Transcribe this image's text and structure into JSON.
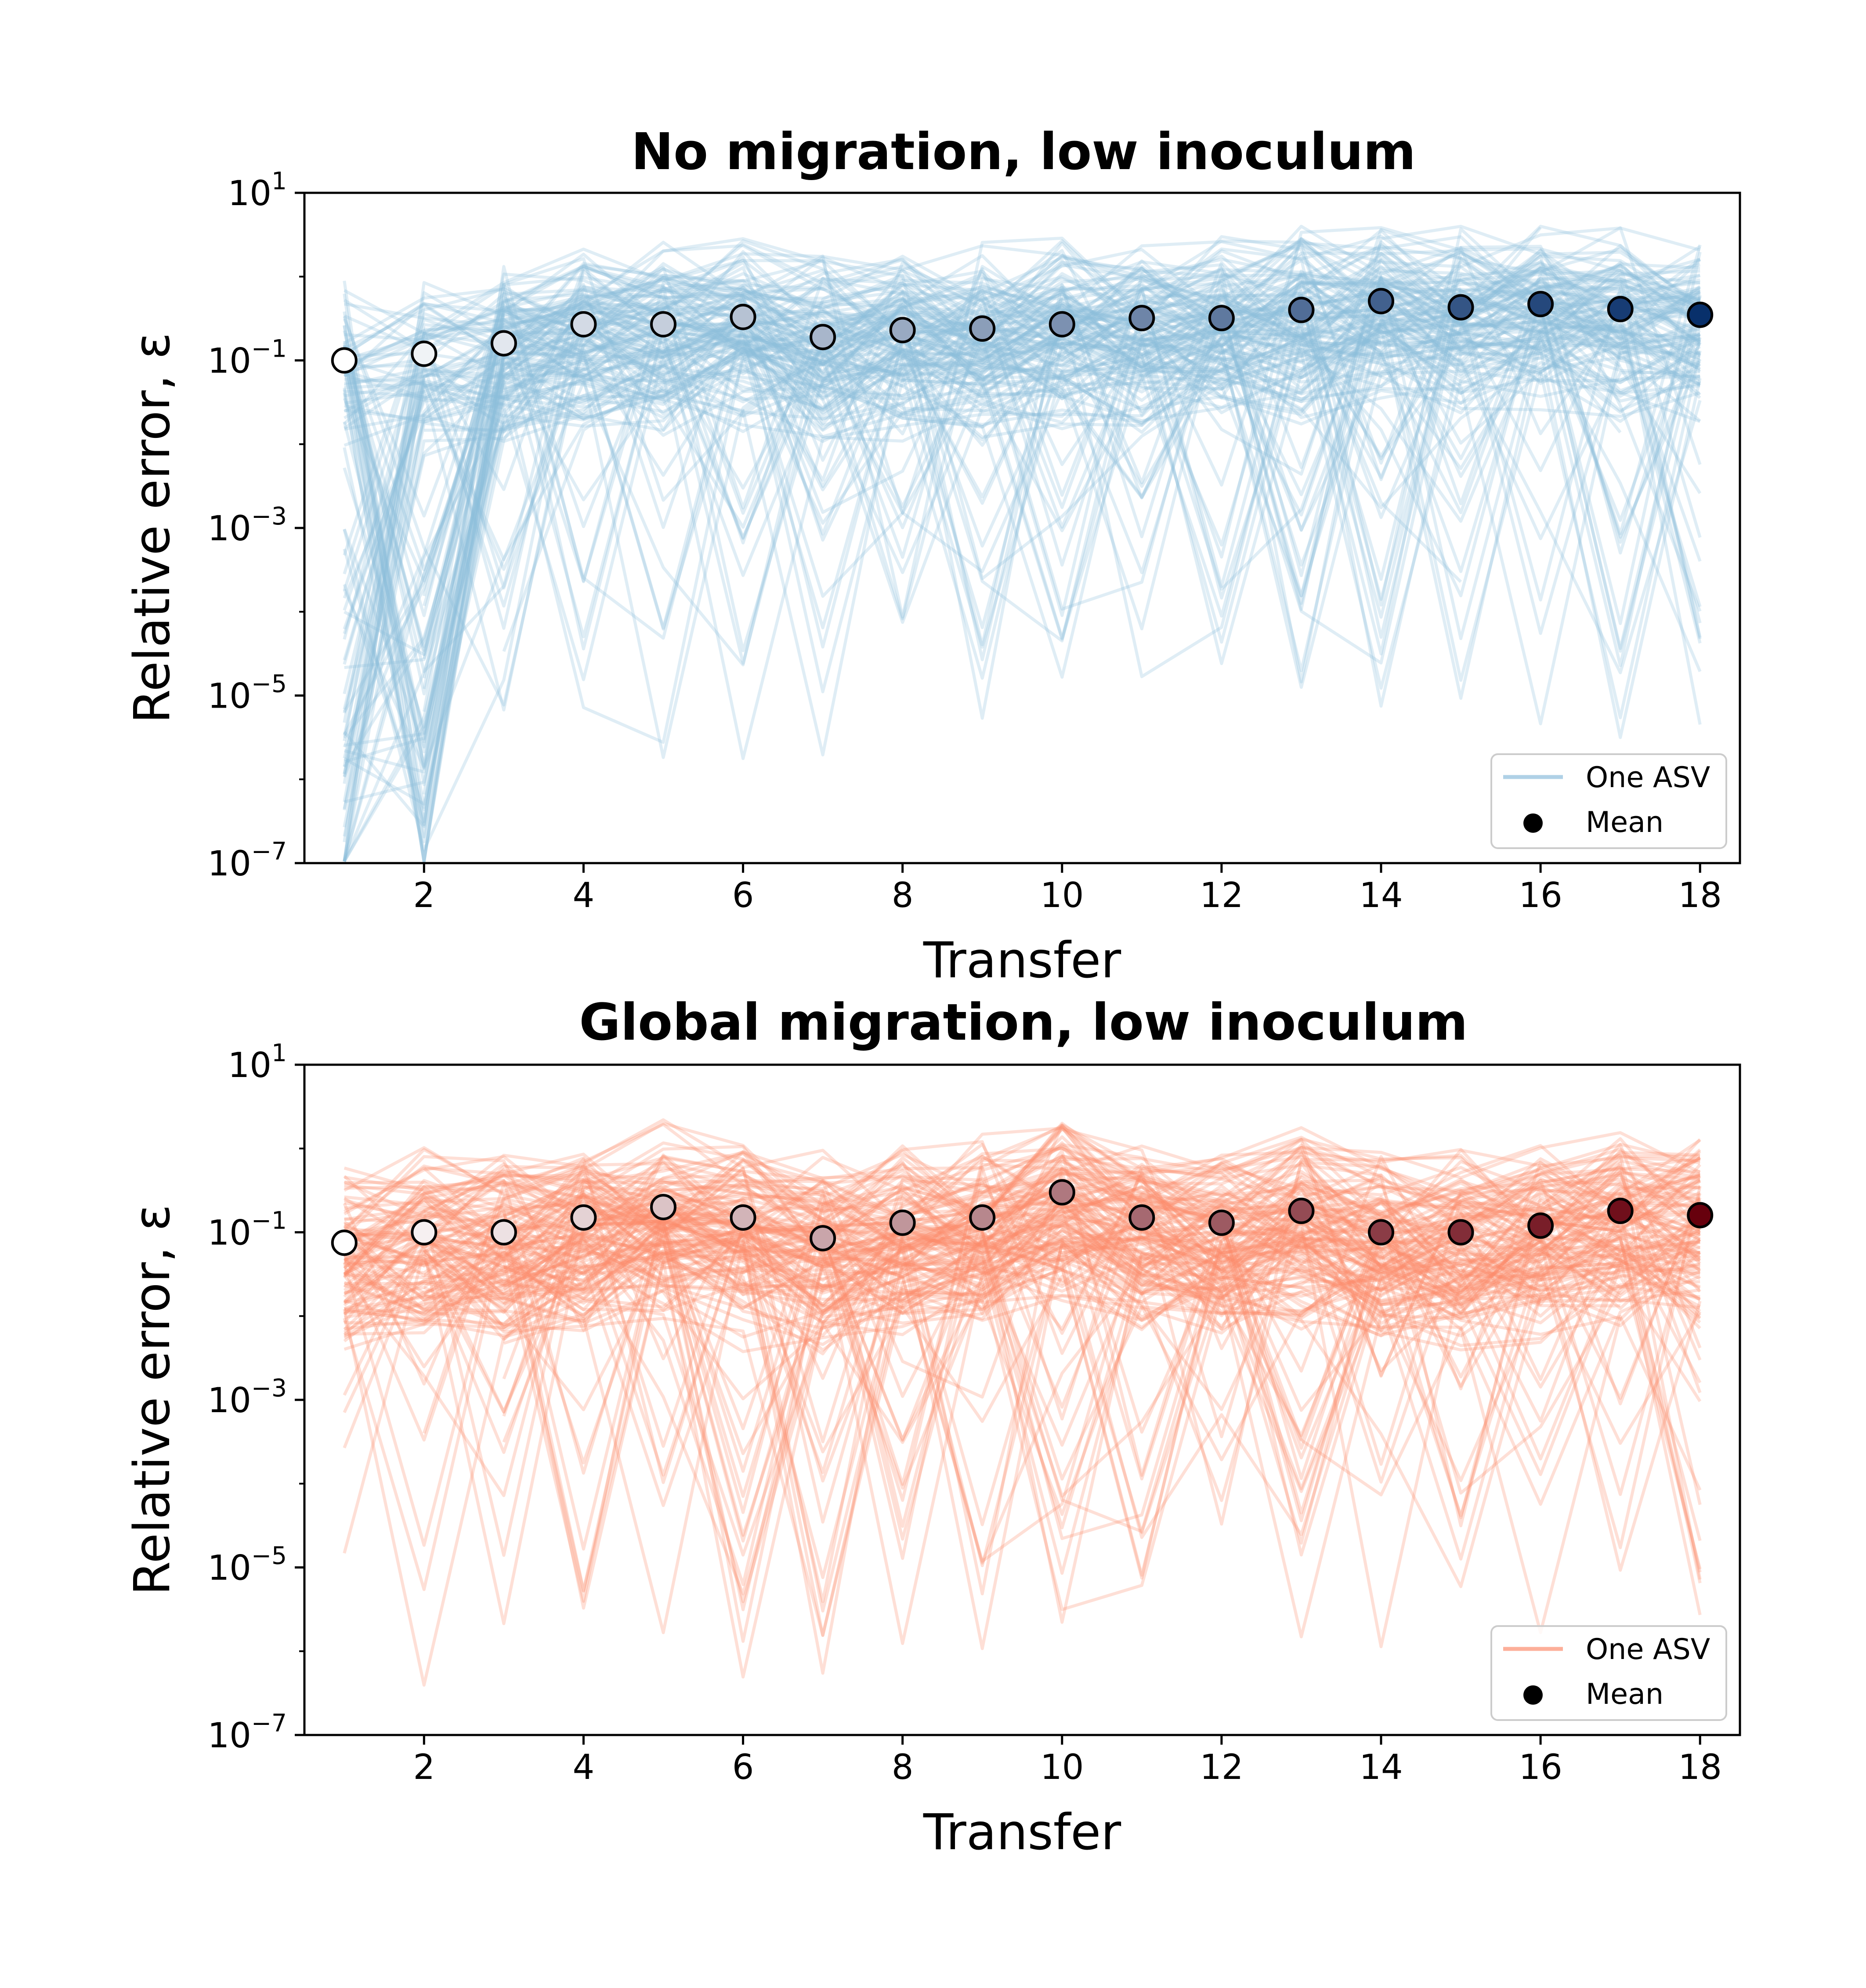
{
  "chart_data": [
    {
      "type": "line",
      "title": "No migration, low inoculum",
      "xlabel": "Transfer",
      "ylabel": "Relative error, ε",
      "yscale": "log",
      "ylim": [
        1e-07,
        10
      ],
      "xlim": [
        0.5,
        18.5
      ],
      "x_ticks": [
        2,
        4,
        6,
        8,
        10,
        12,
        14,
        16,
        18
      ],
      "y_ticks": [
        {
          "base": "10",
          "exp": "1",
          "value": 10
        },
        {
          "base": "10",
          "exp": "−1",
          "value": 0.1
        },
        {
          "base": "10",
          "exp": "−3",
          "value": 0.001
        },
        {
          "base": "10",
          "exp": "−5",
          "value": 1e-05
        },
        {
          "base": "10",
          "exp": "−7",
          "value": 1e-07
        }
      ],
      "legend": {
        "placement": "lower-right",
        "line_label": "One ASV",
        "marker_label": "Mean"
      },
      "colors": {
        "lines": "#8dbedc",
        "mean_start": "#ffffff",
        "mean_end": "#08306b",
        "legend_marker": "#000000"
      },
      "mean": {
        "x": [
          1,
          2,
          3,
          4,
          5,
          6,
          7,
          8,
          9,
          10,
          11,
          12,
          13,
          14,
          15,
          16,
          17,
          18
        ],
        "y": [
          0.1,
          0.12,
          0.16,
          0.27,
          0.27,
          0.33,
          0.19,
          0.23,
          0.24,
          0.27,
          0.32,
          0.32,
          0.4,
          0.51,
          0.43,
          0.47,
          0.41,
          0.35
        ]
      },
      "asv_series_note": "",
      "asv_count": 150,
      "seed": 11
    },
    {
      "type": "line",
      "title": "Global migration, low inoculum",
      "xlabel": "Transfer",
      "ylabel": "Relative error, ε",
      "yscale": "log",
      "ylim": [
        1e-07,
        10
      ],
      "xlim": [
        0.5,
        18.5
      ],
      "x_ticks": [
        2,
        4,
        6,
        8,
        10,
        12,
        14,
        16,
        18
      ],
      "y_ticks": [
        {
          "base": "10",
          "exp": "1",
          "value": 10
        },
        {
          "base": "10",
          "exp": "−1",
          "value": 0.1
        },
        {
          "base": "10",
          "exp": "−3",
          "value": 0.001
        },
        {
          "base": "10",
          "exp": "−5",
          "value": 1e-05
        },
        {
          "base": "10",
          "exp": "−7",
          "value": 1e-07
        }
      ],
      "legend": {
        "placement": "lower-right",
        "line_label": "One ASV",
        "marker_label": "Mean"
      },
      "colors": {
        "lines": "#fc8d6d",
        "mean_start": "#ffffff",
        "mean_end": "#67000d",
        "legend_marker": "#000000"
      },
      "mean": {
        "x": [
          1,
          2,
          3,
          4,
          5,
          6,
          7,
          8,
          9,
          10,
          11,
          12,
          13,
          14,
          15,
          16,
          17,
          18
        ],
        "y": [
          0.075,
          0.1,
          0.1,
          0.15,
          0.2,
          0.15,
          0.085,
          0.13,
          0.15,
          0.3,
          0.15,
          0.13,
          0.18,
          0.1,
          0.1,
          0.12,
          0.18,
          0.16
        ]
      },
      "asv_count": 150,
      "seed": 29
    }
  ]
}
